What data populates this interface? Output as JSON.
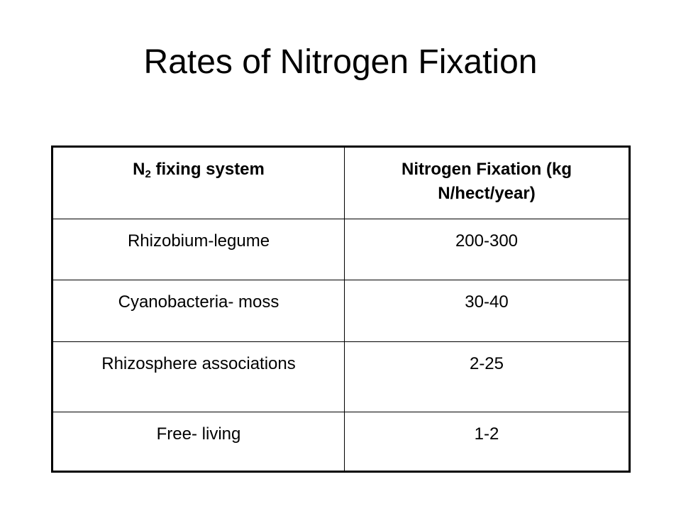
{
  "title": "Rates of Nitrogen Fixation",
  "table": {
    "header": [
      {
        "base": "N",
        "sub": "2",
        "rest": " fixing system"
      },
      "Nitrogen Fixation (kg N/hect/year)"
    ],
    "rows": [
      [
        "Rhizobium-legume",
        "200-300"
      ],
      [
        "Cyanobacteria- moss",
        "30-40"
      ],
      [
        "Rhizosphere associations",
        "2-25"
      ],
      [
        "Free- living",
        "1-2"
      ]
    ]
  }
}
